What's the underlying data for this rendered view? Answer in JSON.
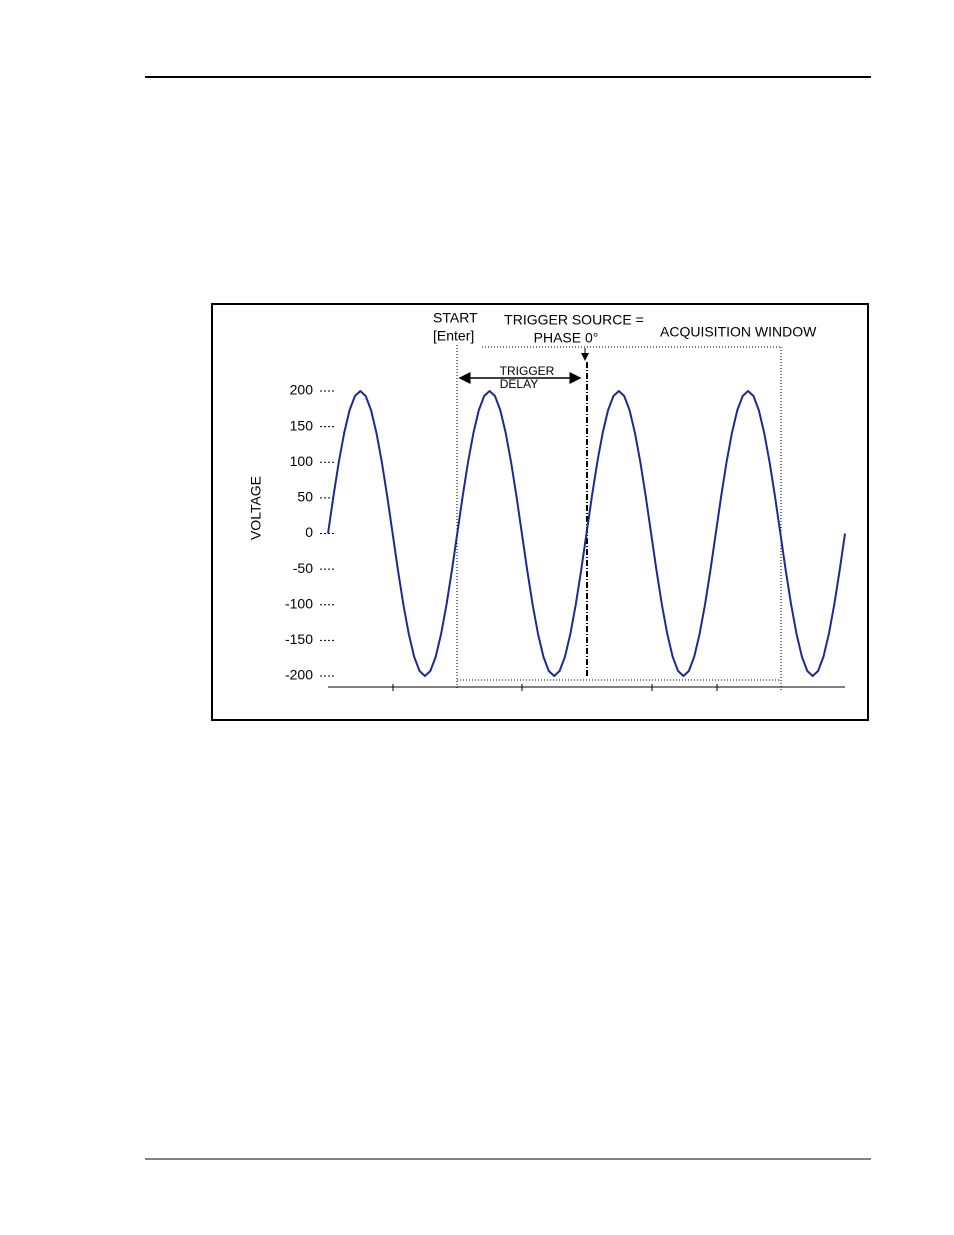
{
  "chart_data": {
    "type": "line",
    "y_label": "VOLTAGE",
    "annotations": [
      "START",
      "[Enter]",
      "TRIGGER SOURCE =",
      "PHASE 0°",
      "ACQUISITION WINDOW",
      "TRIGGER",
      "DELAY"
    ],
    "categories": [
      null,
      null,
      null,
      null,
      null,
      null,
      null,
      null,
      null,
      null,
      null,
      null,
      null,
      null,
      null,
      null,
      null,
      null,
      null,
      null,
      null,
      null,
      null,
      null,
      null,
      null,
      null,
      null,
      null,
      null,
      null,
      null,
      null,
      null,
      null,
      null,
      null,
      null,
      null,
      null,
      null,
      null,
      null,
      null,
      null,
      null,
      null,
      null,
      null,
      null,
      null,
      null,
      null,
      null,
      null,
      null,
      null,
      null,
      null,
      null,
      null,
      null,
      null,
      null,
      null,
      null,
      null,
      null,
      null,
      null,
      null,
      null,
      null,
      null,
      null,
      null,
      null,
      null,
      null,
      null,
      null,
      null,
      null,
      null,
      null,
      null,
      null,
      null,
      null,
      null,
      null,
      null,
      null,
      null,
      null,
      null,
      null
    ],
    "series": [
      {
        "color": "#1f2a8f",
        "values": [
          0,
          52,
          100,
          141,
          173,
          193,
          200,
          193,
          173,
          141,
          100,
          52,
          0,
          -52,
          -100,
          -141,
          -173,
          -193,
          -200,
          -193,
          -173,
          -141,
          -100,
          -52,
          0,
          52,
          100,
          141,
          173,
          193,
          200,
          193,
          173,
          141,
          100,
          52,
          0,
          -52,
          -100,
          -141,
          -173,
          -193,
          -200,
          -193,
          -173,
          -141,
          -100,
          -52,
          0,
          52,
          100,
          141,
          173,
          193,
          200,
          193,
          173,
          141,
          100,
          52,
          0,
          -52,
          -100,
          -141,
          -173,
          -193,
          -200,
          -193,
          -173,
          -141,
          -100,
          -52,
          0,
          52,
          100,
          141,
          173,
          193,
          200,
          193,
          173,
          141,
          100,
          52,
          0,
          -52,
          -100,
          -141,
          -173,
          -193,
          -200,
          -193,
          -173,
          -141,
          -100,
          -52,
          0
        ]
      }
    ],
    "ylim": [
      -200,
      200
    ],
    "yticks": [
      200,
      150,
      100,
      50,
      0,
      -50,
      -100,
      -150,
      -200
    ]
  }
}
